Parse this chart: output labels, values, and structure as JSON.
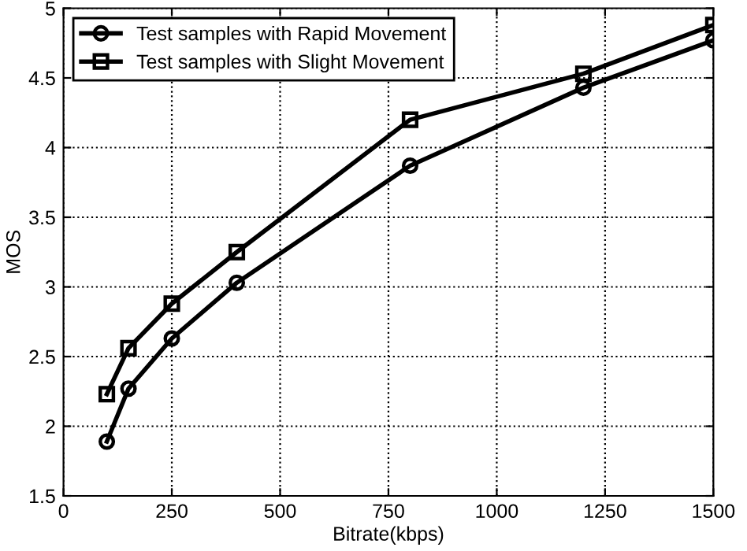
{
  "chart_data": {
    "type": "line",
    "xlabel": "Bitrate(kbps)",
    "ylabel": "MOS",
    "x": [
      100,
      150,
      250,
      400,
      800,
      1200,
      1500
    ],
    "series": [
      {
        "name": "Test samples with Rapid Movement",
        "color": "#000000",
        "marker": "circle",
        "values": [
          1.89,
          2.27,
          2.63,
          3.03,
          3.87,
          4.43,
          4.77
        ]
      },
      {
        "name": "Test samples with Slight Movement",
        "color": "#000000",
        "marker": "square",
        "values": [
          2.23,
          2.56,
          2.88,
          3.25,
          4.2,
          4.53,
          4.88
        ]
      }
    ],
    "xlim": [
      0,
      1500
    ],
    "xticks": [
      0,
      250,
      500,
      750,
      1000,
      1250,
      1500
    ],
    "ylim": [
      1.5,
      5
    ],
    "yticks": [
      1.5,
      2,
      2.5,
      3,
      3.5,
      4,
      4.5,
      5
    ],
    "grid": true,
    "legend": "top left",
    "line_style": "solid"
  }
}
